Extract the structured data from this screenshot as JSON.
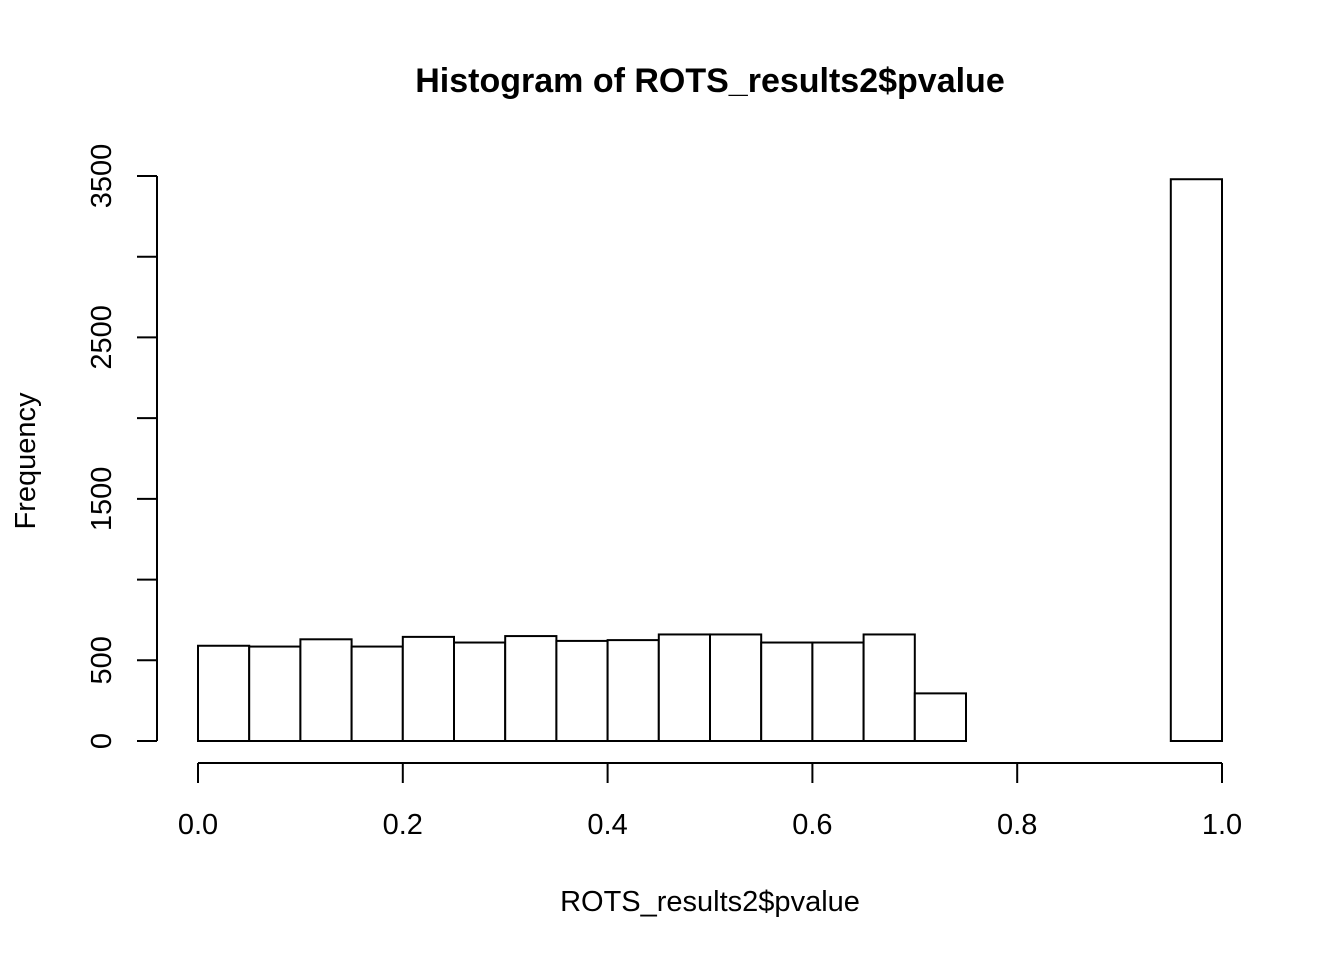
{
  "chart_data": {
    "type": "bar",
    "title": "Histogram of ROTS_results2$pvalue",
    "xlabel": "ROTS_results2$pvalue",
    "ylabel": "Frequency",
    "bin_width": 0.05,
    "bins": [
      {
        "start": 0.0,
        "end": 0.05,
        "value": 590
      },
      {
        "start": 0.05,
        "end": 0.1,
        "value": 585
      },
      {
        "start": 0.1,
        "end": 0.15,
        "value": 630
      },
      {
        "start": 0.15,
        "end": 0.2,
        "value": 585
      },
      {
        "start": 0.2,
        "end": 0.25,
        "value": 645
      },
      {
        "start": 0.25,
        "end": 0.3,
        "value": 610
      },
      {
        "start": 0.3,
        "end": 0.35,
        "value": 650
      },
      {
        "start": 0.35,
        "end": 0.4,
        "value": 620
      },
      {
        "start": 0.4,
        "end": 0.45,
        "value": 625
      },
      {
        "start": 0.45,
        "end": 0.5,
        "value": 660
      },
      {
        "start": 0.5,
        "end": 0.55,
        "value": 660
      },
      {
        "start": 0.55,
        "end": 0.6,
        "value": 610
      },
      {
        "start": 0.6,
        "end": 0.65,
        "value": 610
      },
      {
        "start": 0.65,
        "end": 0.7,
        "value": 660
      },
      {
        "start": 0.7,
        "end": 0.75,
        "value": 295
      },
      {
        "start": 0.75,
        "end": 0.8,
        "value": 0
      },
      {
        "start": 0.8,
        "end": 0.85,
        "value": 0
      },
      {
        "start": 0.85,
        "end": 0.9,
        "value": 0
      },
      {
        "start": 0.9,
        "end": 0.95,
        "value": 0
      },
      {
        "start": 0.95,
        "end": 1.0,
        "value": 3480
      }
    ],
    "xlim": [
      0,
      1
    ],
    "ylim": [
      0,
      3500
    ],
    "x_ticks": [
      {
        "value": 0.0,
        "label": "0.0"
      },
      {
        "value": 0.2,
        "label": "0.2"
      },
      {
        "value": 0.4,
        "label": "0.4"
      },
      {
        "value": 0.6,
        "label": "0.6"
      },
      {
        "value": 0.8,
        "label": "0.8"
      },
      {
        "value": 1.0,
        "label": "1.0"
      }
    ],
    "y_ticks": [
      {
        "value": 0,
        "label": "0"
      },
      {
        "value": 500,
        "label": "500"
      },
      {
        "value": 1000,
        "label": ""
      },
      {
        "value": 1500,
        "label": "1500"
      },
      {
        "value": 2000,
        "label": ""
      },
      {
        "value": 2500,
        "label": "2500"
      },
      {
        "value": 3000,
        "label": ""
      },
      {
        "value": 3500,
        "label": "3500"
      }
    ],
    "grid": false,
    "bar_fill": "#ffffff",
    "bar_stroke": "#000000"
  }
}
